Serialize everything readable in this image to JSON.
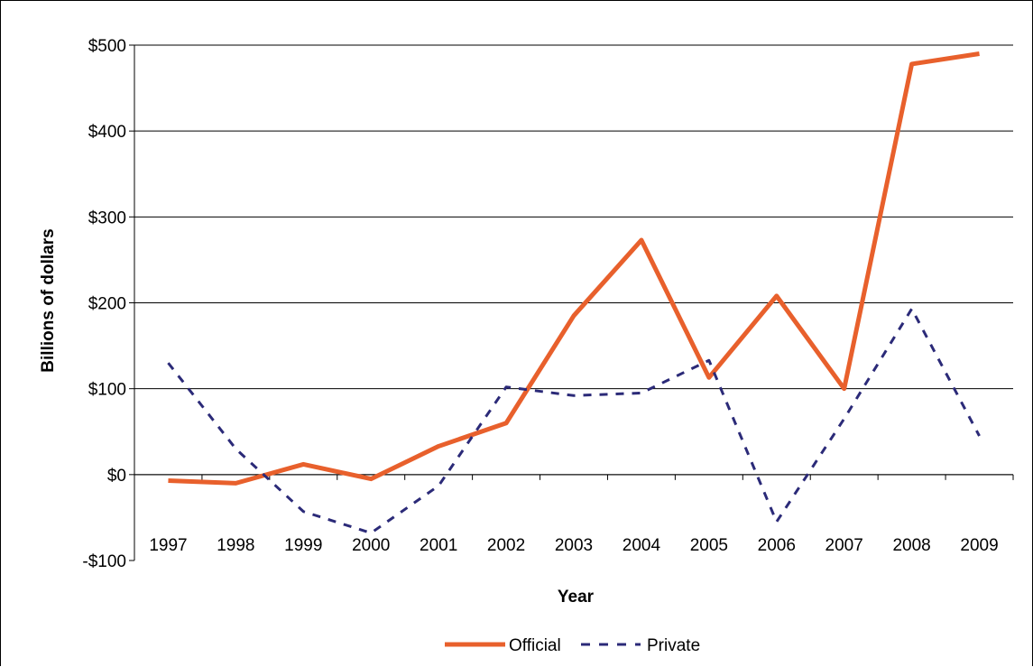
{
  "chart_data": {
    "type": "line",
    "title": "",
    "xlabel": "Year",
    "ylabel": "Billions of dollars",
    "categories": [
      "1997",
      "1998",
      "1999",
      "2000",
      "2001",
      "2002",
      "2003",
      "2004",
      "2005",
      "2006",
      "2007",
      "2008",
      "2009"
    ],
    "ylim": [
      -100,
      500
    ],
    "yticks": [
      -100,
      0,
      100,
      200,
      300,
      400,
      500
    ],
    "ytick_labels": [
      "-$100",
      "$0",
      "$100",
      "$200",
      "$300",
      "$400",
      "$500"
    ],
    "grid": true,
    "legend_position": "bottom",
    "series": [
      {
        "name": "Official",
        "color": "#e8602c",
        "style": "solid",
        "values": [
          -7,
          -10,
          12,
          -5,
          33,
          60,
          185,
          273,
          113,
          208,
          100,
          478,
          490
        ]
      },
      {
        "name": "Private",
        "color": "#2b2a78",
        "style": "dashed",
        "values": [
          130,
          30,
          -43,
          -68,
          -13,
          102,
          92,
          95,
          133,
          -55,
          65,
          193,
          45
        ]
      }
    ]
  }
}
